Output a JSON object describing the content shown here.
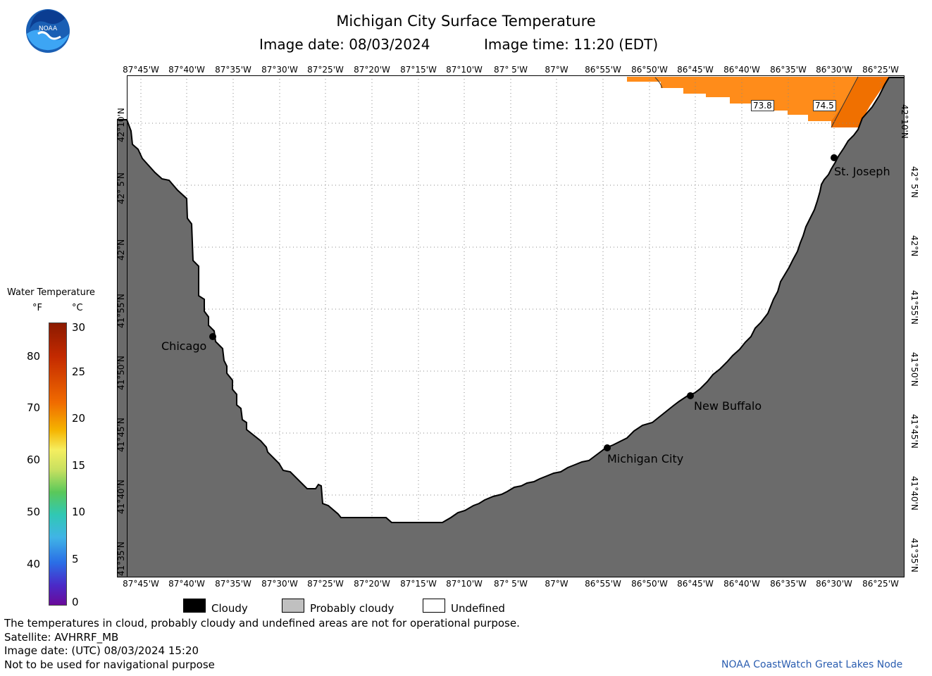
{
  "header": {
    "title": "Michigan City Surface Temperature",
    "image_date": "Image date: 08/03/2024",
    "image_time": "Image time: 11:20 (EDT)"
  },
  "logo": {
    "text": "NOAA"
  },
  "map": {
    "longitude_labels": [
      "87°45'W",
      "87°40'W",
      "87°35'W",
      "87°30'W",
      "87°25'W",
      "87°20'W",
      "87°15'W",
      "87°10'W",
      "87° 5'W",
      "87°W",
      "86°55'W",
      "86°50'W",
      "86°45'W",
      "86°40'W",
      "86°35'W",
      "86°30'W",
      "86°25'W"
    ],
    "latitude_labels": [
      "42°10'N",
      "42° 5'N",
      "42°N",
      "41°55'N",
      "41°50'N",
      "41°45'N",
      "41°40'N",
      "41°35'N"
    ],
    "cities": [
      "Chicago",
      "Michigan City",
      "New Buffalo",
      "St. Joseph"
    ],
    "temperature_tags": [
      "73.8",
      "74.5"
    ],
    "colors": {
      "land": "#6b6b6b",
      "water_warm": "#ff8c1a",
      "water_hot": "#f07000",
      "undefined": "#ffffff",
      "grid": "#999999"
    }
  },
  "colorbar": {
    "title": "Water Temperature",
    "unit_f": "°F",
    "unit_c": "°C",
    "f_ticks": [
      "80",
      "70",
      "60",
      "50",
      "40"
    ],
    "c_ticks": [
      "30",
      "25",
      "20",
      "15",
      "10",
      "5",
      "0"
    ]
  },
  "legend": {
    "cloudy": "Cloudy",
    "probably_cloudy": "Probably cloudy",
    "undefined": "Undefined",
    "colors": {
      "cloudy": "#000000",
      "probably_cloudy": "#c0c0c0",
      "undefined": "#ffffff"
    }
  },
  "footer": {
    "disclaimer": "The temperatures in cloud, probably cloudy and undefined areas are not for operational purpose.",
    "satellite": "Satellite: AVHRRF_MB",
    "utc_date": "Image date: (UTC) 08/03/2024  15:20",
    "nav_warning": "Not to be used for navigational purpose",
    "credit": "NOAA CoastWatch Great Lakes Node"
  }
}
